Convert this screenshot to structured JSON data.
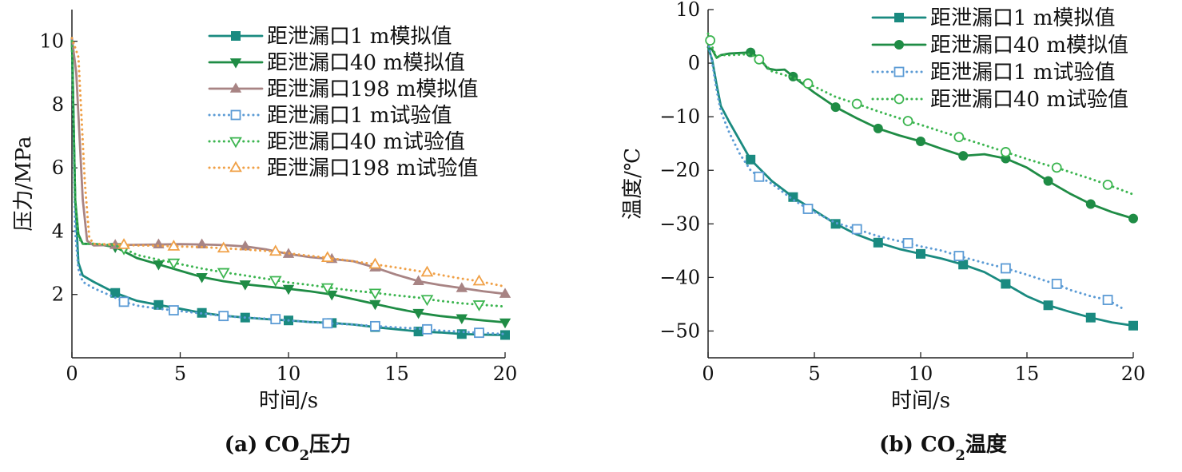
{
  "chart_data": [
    {
      "type": "line",
      "caption": {
        "prefix": "(a) CO",
        "sub": "2",
        "suffix": "压力"
      },
      "xlabel": "时间/s",
      "ylabel": "压力/MPa",
      "xlim": [
        0,
        20
      ],
      "ylim": [
        0,
        11
      ],
      "xticks": [
        0,
        5,
        10,
        15,
        20
      ],
      "yticks": [
        2,
        4,
        6,
        8,
        10
      ],
      "grid": false,
      "legend": "top-right",
      "series": [
        {
          "name": "距泄漏口1 m模拟值",
          "color": "#1a8a80",
          "dash": "solid",
          "marker": "square-filled",
          "x": [
            0,
            0.15,
            0.3,
            0.5,
            1,
            2,
            3,
            4,
            5,
            6,
            7,
            8,
            9,
            10,
            11,
            12,
            13,
            14,
            15,
            16,
            17,
            18,
            19,
            20
          ],
          "y": [
            10.1,
            5.0,
            3.0,
            2.6,
            2.4,
            2.05,
            1.8,
            1.67,
            1.55,
            1.42,
            1.33,
            1.27,
            1.22,
            1.18,
            1.13,
            1.1,
            1.05,
            0.97,
            0.9,
            0.83,
            0.8,
            0.75,
            0.73,
            0.72
          ],
          "markers_x": [
            2,
            4,
            6,
            8,
            10,
            12,
            14,
            16,
            18,
            20
          ]
        },
        {
          "name": "距泄漏口40 m模拟值",
          "color": "#1f8c45",
          "dash": "solid",
          "marker": "triangle-down-filled",
          "x": [
            0,
            0.15,
            0.3,
            0.5,
            1,
            2,
            3,
            4,
            5,
            6,
            7,
            8,
            9,
            10,
            11,
            12,
            13,
            14,
            15,
            16,
            17,
            18,
            19,
            20
          ],
          "y": [
            10.1,
            5.0,
            3.9,
            3.6,
            3.6,
            3.5,
            3.15,
            2.95,
            2.75,
            2.55,
            2.42,
            2.32,
            2.25,
            2.18,
            2.1,
            2.0,
            1.85,
            1.7,
            1.55,
            1.42,
            1.32,
            1.25,
            1.18,
            1.12
          ],
          "markers_x": [
            2,
            4,
            6,
            8,
            10,
            12,
            14,
            16,
            18,
            20
          ]
        },
        {
          "name": "距泄漏口198 m模拟值",
          "color": "#a88484",
          "dash": "solid",
          "marker": "triangle-up-filled",
          "x": [
            0,
            0.2,
            0.5,
            0.7,
            1,
            2,
            3,
            4,
            5,
            6,
            7,
            8,
            9,
            10,
            11,
            12,
            13,
            14,
            15,
            16,
            17,
            18,
            19,
            20
          ],
          "y": [
            10.1,
            9.0,
            5.0,
            3.7,
            3.55,
            3.56,
            3.57,
            3.58,
            3.59,
            3.58,
            3.56,
            3.52,
            3.42,
            3.28,
            3.18,
            3.12,
            3.05,
            2.85,
            2.62,
            2.42,
            2.3,
            2.2,
            2.1,
            2.02
          ],
          "markers_x": [
            2,
            4,
            6,
            8,
            10,
            12,
            14,
            16,
            18,
            20
          ]
        },
        {
          "name": "距泄漏口1 m试验值",
          "color": "#5b9bd5",
          "dash": "dotted",
          "marker": "square-open",
          "x": [
            0,
            0.15,
            0.3,
            0.5,
            1,
            2,
            2.4,
            3,
            4,
            4.7,
            6,
            7,
            8,
            9.4,
            10,
            11,
            11.8,
            13,
            14,
            15,
            16,
            16.4,
            17,
            18,
            18.8,
            20
          ],
          "y": [
            10.0,
            4.0,
            2.8,
            2.4,
            2.2,
            1.9,
            1.77,
            1.65,
            1.55,
            1.5,
            1.4,
            1.32,
            1.27,
            1.22,
            1.18,
            1.13,
            1.09,
            1.05,
            1.0,
            0.96,
            0.92,
            0.9,
            0.86,
            0.82,
            0.79,
            0.75
          ],
          "markers_x": [
            2.4,
            4.7,
            7,
            9.4,
            11.8,
            14,
            16.4,
            18.8
          ]
        },
        {
          "name": "距泄漏口40 m试验值",
          "color": "#3cb550",
          "dash": "dotted",
          "marker": "triangle-down-open",
          "x": [
            0,
            0.15,
            0.3,
            0.5,
            1,
            2,
            2.4,
            3,
            4,
            4.7,
            6,
            7,
            8,
            9.4,
            10,
            11,
            11.8,
            13,
            14,
            15,
            16,
            16.4,
            17,
            18,
            18.8,
            20
          ],
          "y": [
            10.0,
            5.0,
            3.8,
            3.6,
            3.6,
            3.55,
            3.45,
            3.25,
            3.1,
            3.0,
            2.82,
            2.7,
            2.6,
            2.45,
            2.38,
            2.3,
            2.22,
            2.12,
            2.05,
            1.97,
            1.9,
            1.85,
            1.8,
            1.72,
            1.68,
            1.62
          ],
          "markers_x": [
            2.4,
            4.7,
            7,
            9.4,
            11.8,
            14,
            16.4,
            18.8
          ]
        },
        {
          "name": "距泄漏口198 m试验值",
          "color": "#f0a046",
          "dash": "dotted",
          "marker": "triangle-up-open",
          "x": [
            0,
            0.3,
            0.6,
            0.8,
            1,
            2,
            2.4,
            3,
            4,
            4.7,
            6,
            7,
            8,
            9.4,
            10,
            11,
            11.8,
            13,
            14,
            15,
            16,
            16.4,
            17,
            18,
            18.8,
            20
          ],
          "y": [
            10.1,
            9.5,
            5.5,
            3.8,
            3.6,
            3.58,
            3.57,
            3.55,
            3.54,
            3.52,
            3.5,
            3.46,
            3.42,
            3.36,
            3.3,
            3.22,
            3.16,
            3.05,
            2.95,
            2.85,
            2.74,
            2.7,
            2.62,
            2.5,
            2.42,
            2.25
          ],
          "markers_x": [
            2.4,
            4.7,
            7,
            9.4,
            11.8,
            14,
            16.4,
            18.8
          ]
        }
      ]
    },
    {
      "type": "line",
      "caption": {
        "prefix": "(b) CO",
        "sub": "2",
        "suffix": "温度"
      },
      "xlabel": "时间/s",
      "ylabel": "温度/℃",
      "xlim": [
        0,
        20
      ],
      "ylim": [
        -55,
        10
      ],
      "xticks": [
        0,
        5,
        10,
        15,
        20
      ],
      "yticks": [
        10,
        0,
        -10,
        -20,
        -30,
        -40,
        -50
      ],
      "grid": false,
      "legend": "top-right",
      "series": [
        {
          "name": "距泄漏口1 m模拟值",
          "color": "#1a8a80",
          "dash": "solid",
          "marker": "square-filled",
          "x": [
            0,
            0.2,
            0.4,
            0.6,
            1,
            2,
            3,
            4,
            5,
            6,
            7,
            8,
            9,
            10,
            11,
            12,
            13,
            14,
            15,
            16,
            17,
            18,
            19,
            20
          ],
          "y": [
            3.0,
            0.5,
            -4.0,
            -8.0,
            -11.0,
            -18.0,
            -22.0,
            -25.0,
            -27.5,
            -30.0,
            -32.0,
            -33.5,
            -34.7,
            -35.6,
            -36.5,
            -37.6,
            -39.0,
            -41.2,
            -43.5,
            -45.2,
            -46.4,
            -47.5,
            -48.4,
            -49.0
          ],
          "markers_x": [
            2,
            4,
            6,
            8,
            10,
            12,
            14,
            16,
            18,
            20
          ]
        },
        {
          "name": "距泄漏口40 m模拟值",
          "color": "#1f8c45",
          "dash": "solid",
          "marker": "circle-filled",
          "x": [
            0,
            0.2,
            0.4,
            0.6,
            1,
            1.5,
            2,
            2.4,
            2.8,
            3.2,
            3.6,
            4,
            5,
            6,
            7,
            8,
            9,
            10,
            11,
            12,
            13,
            14,
            15,
            16,
            17,
            18,
            19,
            20
          ],
          "y": [
            3.0,
            2.5,
            1.0,
            1.5,
            1.8,
            1.9,
            2.0,
            1.0,
            -1.0,
            -1.3,
            -1.2,
            -2.5,
            -5.5,
            -8.2,
            -10.3,
            -12.2,
            -13.5,
            -14.6,
            -16.0,
            -17.3,
            -17.0,
            -17.8,
            -19.5,
            -22.0,
            -24.3,
            -26.3,
            -27.8,
            -29.0
          ],
          "markers_x": [
            2,
            4,
            6,
            8,
            10,
            12,
            14,
            16,
            18,
            20
          ]
        },
        {
          "name": "距泄漏口1 m试验值",
          "color": "#5b9bd5",
          "dash": "dotted",
          "marker": "square-open",
          "x": [
            0,
            0.2,
            0.4,
            0.6,
            1,
            1.5,
            2,
            2.4,
            3,
            4,
            4.7,
            6,
            7,
            8,
            9.4,
            10,
            11,
            11.8,
            13,
            14,
            15,
            16,
            16.4,
            17,
            18,
            18.8,
            19.5
          ],
          "y": [
            4.0,
            0.0,
            -5.0,
            -9.0,
            -13.0,
            -17.0,
            -20.0,
            -21.2,
            -22.5,
            -25.5,
            -27.2,
            -29.8,
            -31.0,
            -32.3,
            -33.6,
            -34.2,
            -35.0,
            -36.0,
            -37.3,
            -38.3,
            -39.5,
            -40.8,
            -41.2,
            -42.3,
            -43.5,
            -44.2,
            -45.8
          ],
          "markers_x": [
            2.4,
            4.7,
            7,
            9.4,
            11.8,
            14,
            16.4,
            18.8
          ]
        },
        {
          "name": "距泄漏口40 m试验值",
          "color": "#3cb550",
          "dash": "dotted",
          "marker": "circle-open",
          "x": [
            0,
            0.2,
            0.4,
            0.6,
            1,
            1.5,
            2,
            2.4,
            3,
            4,
            4.7,
            6,
            7,
            8,
            9.4,
            10,
            11,
            11.8,
            13,
            14,
            15,
            16,
            16.4,
            17,
            18,
            18.8,
            20
          ],
          "y": [
            5.5,
            3.0,
            1.0,
            1.5,
            1.5,
            1.6,
            1.7,
            0.7,
            -1.5,
            -2.7,
            -3.8,
            -6.3,
            -7.6,
            -9.0,
            -10.8,
            -11.5,
            -12.8,
            -13.8,
            -15.3,
            -16.6,
            -17.9,
            -19.1,
            -19.5,
            -20.3,
            -21.6,
            -22.7,
            -24.5
          ],
          "markers_x": [
            0.1,
            2.4,
            4.7,
            7,
            9.4,
            11.8,
            14,
            16.4,
            18.8
          ]
        }
      ]
    }
  ]
}
